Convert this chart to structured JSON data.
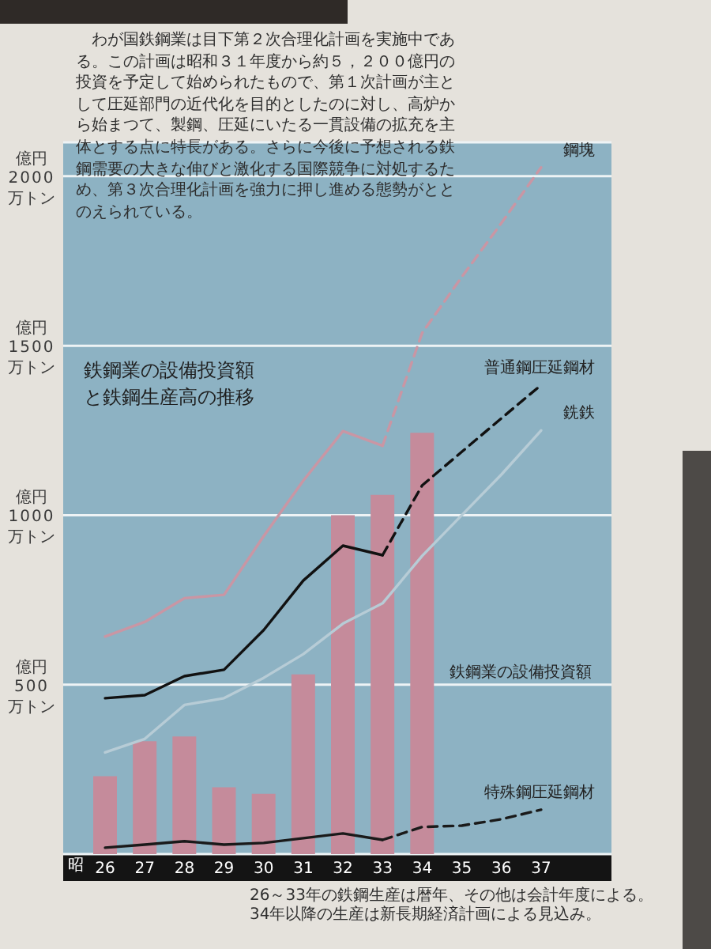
{
  "chart_data": {
    "type": "bar",
    "title": "鉄鋼業の設備投資額と鉄鋼生産高の推移",
    "xlabel": "昭",
    "ylabel": "億円",
    "categories": [
      "26",
      "27",
      "28",
      "29",
      "30",
      "31",
      "32",
      "33",
      "34",
      "35",
      "36",
      "37"
    ],
    "series": [
      {
        "name": "鉄鋼業の設備投資額",
        "color": "#c58b9b",
        "values": [
          230,
          333,
          347,
          197,
          178,
          530,
          1000,
          1060,
          1243,
          null,
          null,
          null
        ]
      },
      {
        "type": "line",
        "color": "#c996a4",
        "line_style": "solid",
        "values": [
          642,
          685,
          755,
          765,
          938,
          1102,
          1248,
          1205,
          null,
          null,
          null,
          null
        ]
      },
      {
        "name": "鋼塊",
        "type": "line",
        "color": "#c996a4",
        "line_style": "dashed",
        "values": [
          null,
          null,
          null,
          null,
          null,
          null,
          null,
          1205,
          1538,
          1703,
          1862,
          2026
        ]
      },
      {
        "name": "銑鉄",
        "type": "line",
        "color": "#b7ccd6",
        "line_style": "solid",
        "values": [
          300,
          340,
          440,
          460,
          520,
          590,
          680,
          740,
          880,
          1000,
          1120,
          1250
        ]
      },
      {
        "type": "line",
        "color": "#111111",
        "line_style": "solid",
        "values": [
          460,
          469,
          525,
          544,
          661,
          807,
          910,
          882,
          null,
          null,
          null,
          null
        ]
      },
      {
        "name": "普通鋼圧延鋼材",
        "type": "line",
        "color": "#111111",
        "line_style": "dashed",
        "values": [
          null,
          null,
          null,
          null,
          null,
          null,
          null,
          882,
          1088,
          1187,
          1286,
          1384
        ]
      },
      {
        "type": "line",
        "color": "#1a1a1a",
        "line_style": "solid",
        "values": [
          19,
          28,
          38,
          28,
          33,
          47,
          61,
          42,
          null,
          null,
          null,
          null
        ]
      },
      {
        "name": "特殊鋼圧延鋼材",
        "type": "line",
        "color": "#1a1a1a",
        "line_style": "dashed",
        "values": [
          null,
          null,
          null,
          null,
          null,
          null,
          null,
          42,
          80,
          84,
          103,
          131
        ]
      }
    ],
    "ylim": [
      0,
      2100
    ],
    "yticks": [
      500,
      1000,
      1500,
      2000
    ],
    "grid": "y",
    "annotations": [
      "わが国鉄鋼業は目下第２次合理化計画を実施中である。この計画は昭和３１年度から約５，２００億円の投資を予定して始められたもので、第１次計画が主として圧延部門の近代化を目的としたのに対し、高炉から始まつて、製鋼、圧延にいたる一貫設備の拡充を主体とする点に特長がある。さらに今後に予想される鉄鋼需要の大きな伸びと激化する国際競争に対処するため、第３次合理化計画を強力に押し進める態勢がととのえられている。",
      "万トン",
      "26～33年の鉄鋼生産は暦年、その他は会計年度による。",
      "34年以降の生産は新長期経済計画による見込み。"
    ]
  }
}
